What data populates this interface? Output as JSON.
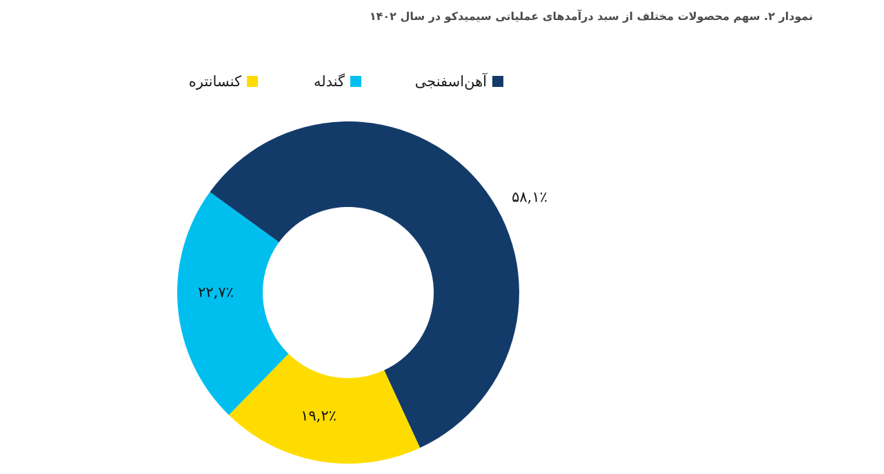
{
  "chart_data": {
    "type": "pie",
    "title": "نمودار ۲. سهم محصولات مختلف از سبد درآمدهای عملیاتی سیمیدکو در سال ۱۴۰۲",
    "series": [
      {
        "name": "آهن‌اسفنجی",
        "value": 58.1,
        "label": "۵۸,۱٪",
        "color": "#133b6a"
      },
      {
        "name": "کنسانتره",
        "value": 19.2,
        "label": "۱۹,۲٪",
        "color": "#ffdc00"
      },
      {
        "name": "گندله",
        "value": 22.7,
        "label": "۲۲,۷٪",
        "color": "#00bfef"
      }
    ],
    "donut": true,
    "legend_position": "top",
    "start_angle_deg": -54
  }
}
